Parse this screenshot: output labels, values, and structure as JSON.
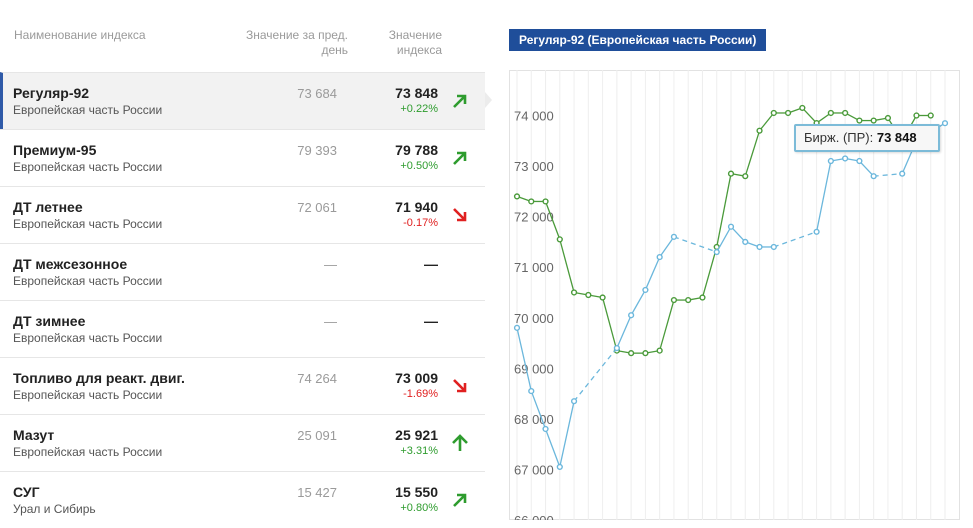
{
  "header": {
    "name": "Наименование индекса",
    "prev": "Значение за пред. день",
    "current": "Значение индекса"
  },
  "rows": [
    {
      "name": "Регуляр-92",
      "region": "Европейская часть России",
      "prev": "73 684",
      "current": "73 848",
      "change": "+0.22%",
      "dir": "up",
      "selected": true
    },
    {
      "name": "Премиум-95",
      "region": "Европейская часть России",
      "prev": "79 393",
      "current": "79 788",
      "change": "+0.50%",
      "dir": "up",
      "selected": false
    },
    {
      "name": "ДТ летнее",
      "region": "Европейская часть России",
      "prev": "72 061",
      "current": "71 940",
      "change": "-0.17%",
      "dir": "down",
      "selected": false
    },
    {
      "name": "ДТ межсезонное",
      "region": "Европейская часть России",
      "prev": "—",
      "current": "—",
      "change": "",
      "dir": "none",
      "selected": false
    },
    {
      "name": "ДТ зимнее",
      "region": "Европейская часть России",
      "prev": "—",
      "current": "—",
      "change": "",
      "dir": "none",
      "selected": false
    },
    {
      "name": "Топливо для реакт. двиг.",
      "region": "Европейская часть России",
      "prev": "74 264",
      "current": "73 009",
      "change": "-1.69%",
      "dir": "down",
      "selected": false
    },
    {
      "name": "Мазут",
      "region": "Европейская часть России",
      "prev": "25 091",
      "current": "25 921",
      "change": "+3.31%",
      "dir": "up-bold",
      "selected": false
    },
    {
      "name": "СУГ",
      "region": "Урал и Сибирь",
      "prev": "15 427",
      "current": "15 550",
      "change": "+0.80%",
      "dir": "up",
      "selected": false
    }
  ],
  "colors": {
    "up": "#2e9c2e",
    "down": "#e02020",
    "accent": "#1f4e9a",
    "green_series": "#4a9a3a",
    "blue_series": "#6bb7dc"
  },
  "chart_data": {
    "type": "line",
    "title": "Регуляр-92 (Европейская часть России)",
    "yticks": [
      "66 000",
      "67 000",
      "68 000",
      "69 000",
      "70 000",
      "71 000",
      "72 000",
      "73 000",
      "74 000"
    ],
    "ylim": [
      66000,
      74900
    ],
    "grid": true,
    "x_count": 31,
    "series": [
      {
        "name": "",
        "color": "#4a9a3a",
        "points": [
          [
            0,
            72400
          ],
          [
            1,
            72300
          ],
          [
            2,
            72300
          ],
          [
            3,
            71550
          ],
          [
            4,
            70500
          ],
          [
            5,
            70450
          ],
          [
            6,
            70400
          ],
          [
            7,
            69350
          ],
          [
            8,
            69300
          ],
          [
            9,
            69300
          ],
          [
            10,
            69350
          ],
          [
            11,
            70350
          ],
          [
            12,
            70350
          ],
          [
            13,
            70400
          ],
          [
            14,
            71400
          ],
          [
            15,
            72850
          ],
          [
            16,
            72800
          ],
          [
            17,
            73700
          ],
          [
            18,
            74050
          ],
          [
            19,
            74050
          ],
          [
            20,
            74150
          ],
          [
            21,
            73850
          ],
          [
            22,
            74050
          ],
          [
            23,
            74050
          ],
          [
            24,
            73900
          ],
          [
            25,
            73900
          ],
          [
            26,
            73950
          ],
          [
            27,
            73500
          ],
          [
            28,
            74000
          ],
          [
            29,
            74000
          ]
        ]
      },
      {
        "name": "Бирж. (ПР)",
        "color": "#6bb7dc",
        "points": [
          [
            0,
            69800
          ],
          [
            1,
            68550
          ],
          [
            2,
            67800
          ],
          [
            3,
            67050
          ],
          [
            4,
            68350
          ],
          [
            7,
            69400
          ],
          [
            8,
            70050
          ],
          [
            9,
            70550
          ],
          [
            10,
            71200
          ],
          [
            11,
            71600
          ],
          [
            14,
            71300
          ],
          [
            15,
            71800
          ],
          [
            16,
            71500
          ],
          [
            17,
            71400
          ],
          [
            18,
            71400
          ],
          [
            21,
            71700
          ],
          [
            22,
            73100
          ],
          [
            23,
            73150
          ],
          [
            24,
            73100
          ],
          [
            25,
            72800
          ],
          [
            27,
            72850
          ],
          [
            28,
            73500
          ],
          [
            30,
            73848
          ]
        ]
      }
    ],
    "tooltip": {
      "label": "Бирж. (ПР):",
      "value": "73 848"
    }
  }
}
